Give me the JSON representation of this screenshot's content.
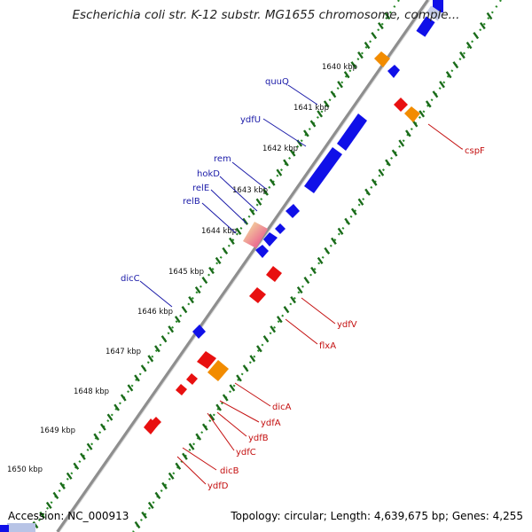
{
  "header": {
    "title": "Escherichia coli str. K-12 substr. MG1655 chromosome, comple..."
  },
  "footer": {
    "accession": "Accession: NC_000913",
    "topology": "Topology: circular; Length: 4,639,675 bp; Genes: 4,255"
  },
  "colors": {
    "forward_gene": "#1010e8",
    "reverse_gene": "#e81010",
    "other_feature": "#f28c00",
    "backbone": "#8a8a8a",
    "forward_track": "#1e7a1e",
    "reverse_track": "#1e7a1e"
  },
  "kbp_ticks": [
    {
      "label": "1640 kbp"
    },
    {
      "label": "1641 kbp"
    },
    {
      "label": "1642 kbp"
    },
    {
      "label": "1643 kbp"
    },
    {
      "label": "1644 kbp"
    },
    {
      "label": "1645 kbp"
    },
    {
      "label": "1646 kbp"
    },
    {
      "label": "1647 kbp"
    },
    {
      "label": "1648 kbp"
    },
    {
      "label": "1649 kbp"
    },
    {
      "label": "1650 kbp"
    }
  ],
  "forward_gene_labels": [
    {
      "label": "quuQ"
    },
    {
      "label": "ydfU"
    },
    {
      "label": "rem"
    },
    {
      "label": "hokD"
    },
    {
      "label": "relE"
    },
    {
      "label": "relB"
    },
    {
      "label": "dicC"
    }
  ],
  "reverse_gene_labels": [
    {
      "label": "cspF"
    },
    {
      "label": "ydfV"
    },
    {
      "label": "flxA"
    },
    {
      "label": "dicA"
    },
    {
      "label": "ydfA"
    },
    {
      "label": "ydfB"
    },
    {
      "label": "ydfC"
    },
    {
      "label": "dicB"
    },
    {
      "label": "ydfD"
    }
  ]
}
